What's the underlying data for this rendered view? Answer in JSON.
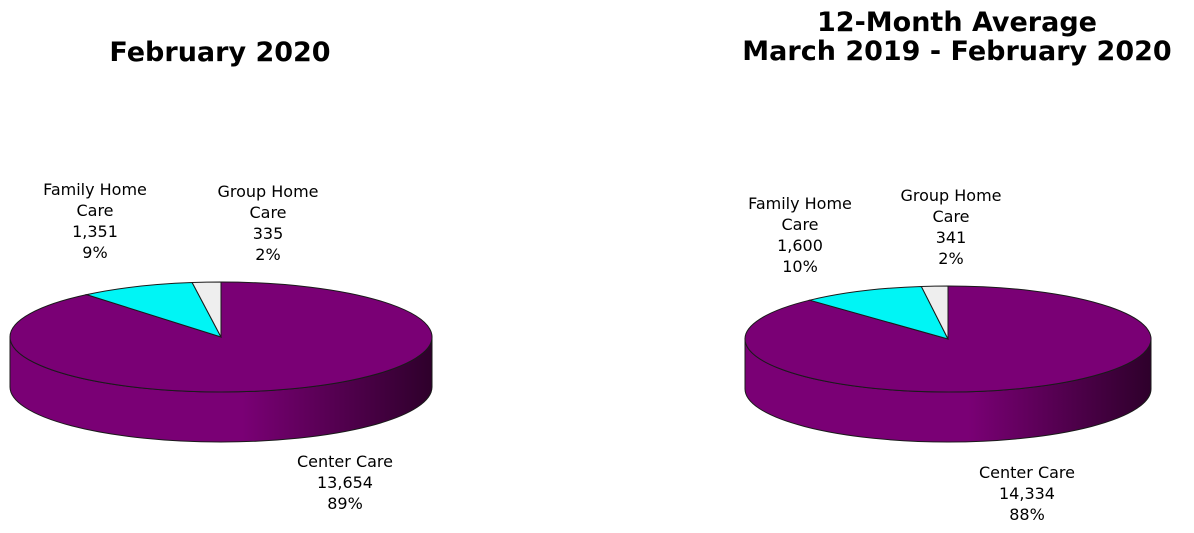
{
  "chart_data": [
    {
      "type": "pie",
      "title": [
        "February 2020"
      ],
      "slices": [
        {
          "label": [
            "Center Care"
          ],
          "value": "13,654",
          "percent": "89%",
          "num": 13654
        },
        {
          "label": [
            "Family Home",
            "Care"
          ],
          "value": "1,351",
          "percent": "9%",
          "num": 1351
        },
        {
          "label": [
            "Group Home",
            "Care"
          ],
          "value": "335",
          "percent": "2%",
          "num": 335
        }
      ]
    },
    {
      "type": "pie",
      "title": [
        "12-Month Average",
        "March 2019 - February 2020"
      ],
      "slices": [
        {
          "label": [
            "Center Care"
          ],
          "value": "14,334",
          "percent": "88%",
          "num": 14334
        },
        {
          "label": [
            "Family Home",
            "Care"
          ],
          "value": "1,600",
          "percent": "10%",
          "num": 1600
        },
        {
          "label": [
            "Group Home",
            "Care"
          ],
          "value": "341",
          "percent": "2%",
          "num": 341
        }
      ]
    }
  ],
  "colors": {
    "center_care": "#7a0075",
    "center_care_dark": "#2e002b",
    "family_home_care": "#00f5f5",
    "group_home_care": "#eeeeee",
    "edge": "#1a1a1a"
  }
}
